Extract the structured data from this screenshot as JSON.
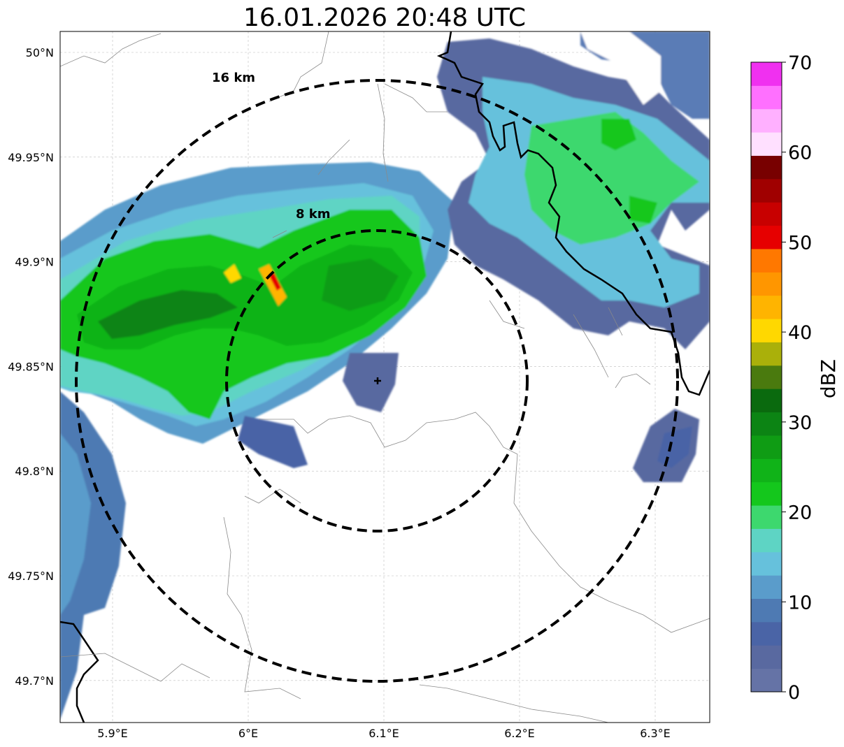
{
  "title": "16.01.2026 20:48 UTC",
  "map": {
    "lon_ticks": [
      {
        "value": 5.9,
        "label": "5.9°E"
      },
      {
        "value": 6.0,
        "label": "6°E"
      },
      {
        "value": 6.1,
        "label": "6.1°E"
      },
      {
        "value": 6.2,
        "label": "6.2°E"
      },
      {
        "value": 6.3,
        "label": "6.3°E"
      }
    ],
    "lat_ticks": [
      {
        "value": 50.0,
        "label": "50°N"
      },
      {
        "value": 49.95,
        "label": "49.95°N"
      },
      {
        "value": 49.9,
        "label": "49.9°N"
      },
      {
        "value": 49.85,
        "label": "49.85°N"
      },
      {
        "value": 49.8,
        "label": "49.8°N"
      },
      {
        "value": 49.75,
        "label": "49.75°N"
      },
      {
        "value": 49.7,
        "label": "49.7°N"
      }
    ],
    "range_rings": [
      {
        "label": "16 km"
      },
      {
        "label": "8 km"
      }
    ],
    "radar_marker": "plus-marker",
    "grid": true
  },
  "colorbar": {
    "title": "dBZ",
    "ticks": [
      "0",
      "10",
      "20",
      "30",
      "40",
      "50",
      "60",
      "70"
    ],
    "colors": [
      "#6573a6",
      "#5969a0",
      "#4a64a6",
      "#4e7ab3",
      "#5a9ccb",
      "#66c1dc",
      "#5ed4c4",
      "#3dd86e",
      "#14c71c",
      "#10b318",
      "#0f9c14",
      "#0c8414",
      "#0a6a0e",
      "#4a7a0e",
      "#aab00a",
      "#ffd800",
      "#ffb400",
      "#ff9600",
      "#ff7800",
      "#e60000",
      "#c80000",
      "#a00000",
      "#780000",
      "#ffe0ff",
      "#ffb0ff",
      "#ff70ff",
      "#f030f0"
    ]
  }
}
